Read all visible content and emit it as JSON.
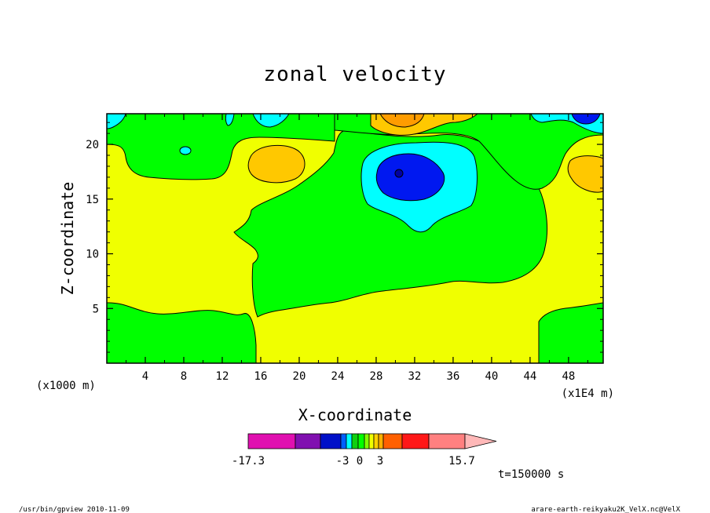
{
  "chart_data": {
    "type": "heatmap",
    "title": "zonal velocity",
    "xlabel": "X-coordinate",
    "ylabel": "Z-coordinate",
    "x_unit_label": "(x1000 m)",
    "x_scale_label": "(x1E4 m)",
    "xlim": [
      0,
      51.6
    ],
    "ylim": [
      0,
      22.8
    ],
    "x_ticks": [
      4,
      8,
      12,
      16,
      20,
      24,
      28,
      32,
      36,
      40,
      44,
      48
    ],
    "y_ticks": [
      5,
      10,
      15,
      20
    ],
    "x_tick_labels": [
      "4",
      "8",
      "12",
      "16",
      "20",
      "24",
      "28",
      "32",
      "36",
      "40",
      "44",
      "48"
    ],
    "y_tick_labels": [
      "5",
      "10",
      "15",
      "20"
    ],
    "grid": false,
    "colorbar": {
      "min_label": "-17.3",
      "max_label": "15.7",
      "mid_labels": [
        "-3",
        "0",
        "3"
      ],
      "colors": [
        "#e010b0",
        "#8010b0",
        "#0010c8",
        "#0060ff",
        "#00ffff",
        "#10d010",
        "#00ff00",
        "#80ff00",
        "#f0ff00",
        "#ffd000",
        "#ffb000",
        "#ff6000",
        "#ff1818",
        "#ff8080",
        "#ffb8b8"
      ]
    },
    "regions": [
      {
        "level": "weak negative",
        "color": "#00ff00"
      },
      {
        "level": "weak positive",
        "color": "#f0ff00"
      },
      {
        "level": "positive",
        "color": "#ffc800"
      },
      {
        "level": "strong positive",
        "color": "#ff9c00"
      },
      {
        "level": "negative",
        "color": "#00ffff"
      },
      {
        "level": "strong negative",
        "color": "#0018f0"
      },
      {
        "level": "minimum",
        "color": "#0000a0"
      }
    ],
    "time_label": "t=150000 s"
  },
  "footer": {
    "left": "/usr/bin/gpview  2010-11-09",
    "right": "arare-earth-reikyaku2K_VelX.nc@VelX"
  }
}
